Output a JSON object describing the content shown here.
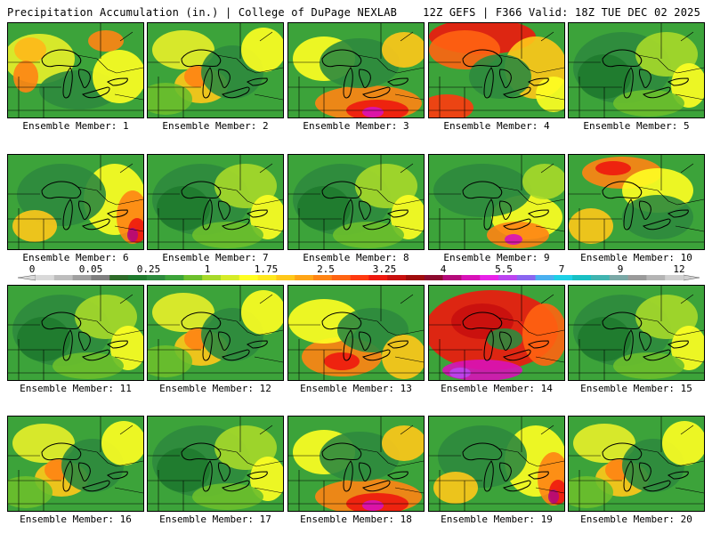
{
  "header": {
    "left": "Precipitation Accumulation (in.) | College of DuPage NEXLAB",
    "right": "12Z GEFS | F366 Valid: 18Z TUE DEC 02 2025"
  },
  "panel_label_prefix": "Ensemble Member: ",
  "members": [
    {
      "number": 1,
      "tone": "moist-west"
    },
    {
      "number": 2,
      "tone": "mixed"
    },
    {
      "number": 3,
      "tone": "heavy-south"
    },
    {
      "number": 4,
      "tone": "very-wet-north"
    },
    {
      "number": 5,
      "tone": "dry"
    },
    {
      "number": 6,
      "tone": "wet-east"
    },
    {
      "number": 7,
      "tone": "dry"
    },
    {
      "number": 8,
      "tone": "dry"
    },
    {
      "number": 9,
      "tone": "heavy-southeast"
    },
    {
      "number": 10,
      "tone": "wet-north"
    },
    {
      "number": 11,
      "tone": "dry"
    },
    {
      "number": 12,
      "tone": "mixed"
    },
    {
      "number": 13,
      "tone": "wet-south"
    },
    {
      "number": 14,
      "tone": "very-wet"
    },
    {
      "number": 15,
      "tone": "dry"
    },
    {
      "number": 16,
      "tone": "mixed"
    },
    {
      "number": 17,
      "tone": "dry"
    },
    {
      "number": 18,
      "tone": "heavy-south"
    },
    {
      "number": 19,
      "tone": "wet-east"
    },
    {
      "number": 20,
      "tone": "mixed"
    }
  ],
  "colorbar": {
    "tick_labels": [
      "0",
      "0.05",
      "0.25",
      "1",
      "1.75",
      "2.5",
      "3.25",
      "4",
      "5.5",
      "7",
      "9",
      "12"
    ],
    "colors": [
      "#d9d9d9",
      "#bdbdbd",
      "#a0a0a0",
      "#7f7f7f",
      "#2e6b2a",
      "#1f7a2e",
      "#2d8a3e",
      "#3ca33a",
      "#6cbf2c",
      "#a7d92a",
      "#d6ec28",
      "#ffff22",
      "#ffe81e",
      "#ffc81a",
      "#ffa516",
      "#ff8414",
      "#ff6412",
      "#ff3a10",
      "#ee180e",
      "#c8100e",
      "#a00c0c",
      "#8c0a2e",
      "#b40a7a",
      "#d812b8",
      "#e822e8",
      "#bb44f0",
      "#8a66f0",
      "#4ab0f0",
      "#1ed0e6",
      "#18c0c4",
      "#40b4b0",
      "#7aa8a6",
      "#9a9a9a",
      "#b4b4b4",
      "#cfcfcf"
    ]
  }
}
